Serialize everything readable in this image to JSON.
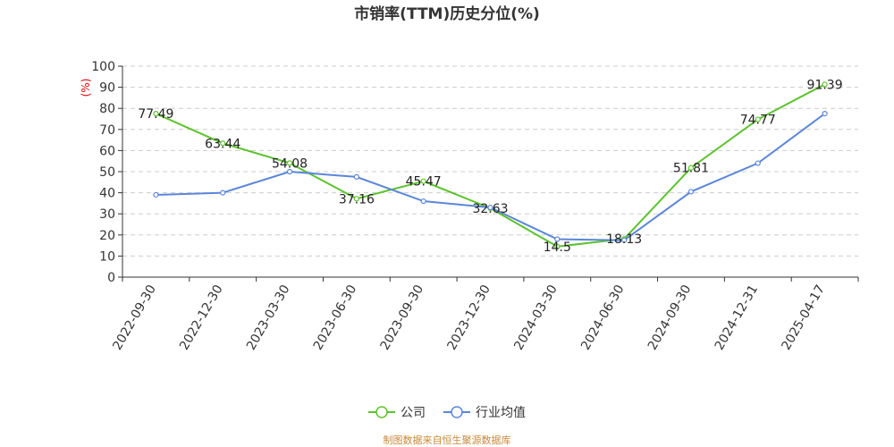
{
  "chart_data": {
    "type": "line",
    "title": "市销率(TTM)历史分位(%)",
    "ylabel": "(%)",
    "xlabel": "",
    "ylim": [
      0,
      100
    ],
    "y_ticks": [
      0,
      10,
      20,
      30,
      40,
      50,
      60,
      70,
      80,
      90,
      100
    ],
    "grid": true,
    "legend_position": "bottom",
    "categories": [
      "2022-09-30",
      "2022-12-30",
      "2023-03-30",
      "2023-06-30",
      "2023-09-30",
      "2023-12-30",
      "2024-03-30",
      "2024-06-30",
      "2024-09-30",
      "2024-12-31",
      "2025-04-17"
    ],
    "series": [
      {
        "name": "公司",
        "color": "#5cc22b",
        "values": [
          77.49,
          63.44,
          54.08,
          37.16,
          45.47,
          32.63,
          14.5,
          18.13,
          51.81,
          74.77,
          91.39
        ],
        "labels": [
          "77.49",
          "63.44",
          "54.08",
          "37.16",
          "45.47",
          "32.63",
          "14.5",
          "18.13",
          "51.81",
          "74.77",
          "91.39"
        ]
      },
      {
        "name": "行业均值",
        "color": "#5b86d8",
        "values": [
          39,
          40,
          50,
          47.5,
          36,
          33,
          18,
          17.5,
          40.5,
          54,
          77.5
        ]
      }
    ]
  },
  "source_note": "制图数据来自恒生聚源数据库"
}
